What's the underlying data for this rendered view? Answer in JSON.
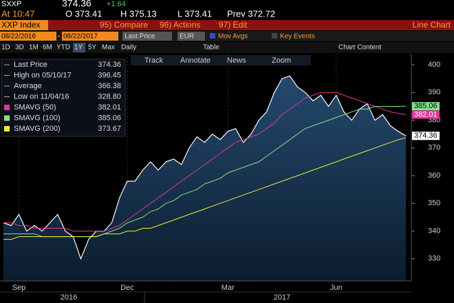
{
  "header": {
    "ticker": "SXXP",
    "price": "374.36",
    "change": "+1.64",
    "time": "At 10:47",
    "open": "O 373.41",
    "high": "H 375.13",
    "low": "L 373.41",
    "prev": "Prev 372.72",
    "index": "XXP Index",
    "compare": "95) Compare",
    "actions": "96) Actions",
    "edit": "97) Edit",
    "chart_kind": "Line Chart",
    "start_date": "08/22/2016",
    "dash": "-",
    "end_date": "08/22/2017",
    "field": "Last Price",
    "currency": "EUR",
    "mov_avgs": "Mov Avgs",
    "key_events": "Key Events",
    "periods": [
      "1D",
      "3D",
      "1M",
      "6M",
      "YTD",
      "1Y",
      "5Y",
      "Max"
    ],
    "frequency": "Daily",
    "table": "Table",
    "chart_content": "Chart Content",
    "tools": [
      "Track",
      "Annotate",
      "News",
      "Zoom"
    ]
  },
  "chart_data": {
    "type": "line",
    "categories": [
      null,
      null,
      "Sep",
      null,
      null,
      null,
      null,
      null,
      null,
      null,
      null,
      null,
      null,
      null,
      null,
      null,
      "Dec",
      null,
      null,
      null,
      null,
      null,
      null,
      null,
      null,
      null,
      null,
      null,
      null,
      "Mar",
      null,
      null,
      null,
      null,
      null,
      null,
      null,
      null,
      null,
      null,
      null,
      null,
      null,
      "Jun",
      null,
      null,
      null,
      null,
      null,
      null,
      null,
      null,
      null
    ],
    "year_labels": [
      "2016",
      "2017"
    ],
    "series": [
      {
        "name": "Last Price",
        "color": "#ffffff",
        "values": [
          343,
          342,
          346,
          340,
          342,
          340,
          343,
          346,
          340,
          338,
          330,
          337,
          340,
          340,
          343,
          352,
          358,
          358,
          362,
          365,
          362,
          365,
          366,
          364,
          370,
          374,
          372,
          375,
          373,
          376,
          377,
          372,
          375,
          380,
          383,
          390,
          395,
          396,
          392,
          390,
          387,
          389,
          385,
          389,
          383,
          380,
          384,
          386,
          380,
          382,
          378,
          376,
          374.36
        ]
      },
      {
        "name": "SMAVG (50)",
        "color": "#e4359d",
        "values": [
          343,
          343,
          342,
          342,
          341,
          341,
          341,
          341,
          341,
          340,
          340,
          340,
          340,
          340,
          341,
          342,
          344,
          346,
          348,
          350,
          352,
          354,
          356,
          358,
          360,
          362,
          364,
          366,
          368,
          370,
          372,
          373,
          374,
          375,
          377,
          379,
          382,
          384,
          386,
          388,
          389,
          390,
          390,
          390,
          389,
          388,
          387,
          386,
          385,
          384,
          383,
          382.5,
          382.01
        ]
      },
      {
        "name": "SMAVG (100)",
        "color": "#86e08a",
        "values": [
          339,
          339,
          339,
          339,
          339,
          338,
          338,
          338,
          338,
          338,
          338,
          338,
          338,
          339,
          340,
          341,
          343,
          344,
          345,
          347,
          348,
          350,
          351,
          353,
          354,
          355,
          357,
          358,
          359,
          361,
          362,
          363,
          364,
          365,
          367,
          369,
          371,
          373,
          375,
          377,
          378,
          379,
          380,
          381,
          382,
          383,
          384,
          384,
          385,
          385,
          385,
          385,
          385.06
        ]
      },
      {
        "name": "SMAVG (200)",
        "color": "#eeee3a",
        "values": [
          337,
          337,
          338,
          338,
          338,
          338,
          338,
          338,
          338,
          338,
          338,
          338,
          338,
          339,
          339,
          339,
          340,
          340,
          341,
          341,
          342,
          343,
          344,
          345,
          346,
          347,
          348,
          349,
          350,
          351,
          352,
          353,
          354,
          355,
          356,
          357,
          358,
          359,
          360,
          361,
          362,
          363,
          364,
          365,
          366,
          367,
          368,
          369,
          370,
          371,
          372,
          373,
          373.67
        ]
      }
    ],
    "stats": [
      {
        "name": "High on 05/10/17",
        "value": 396.45
      },
      {
        "name": "Average",
        "value": 366.38
      },
      {
        "name": "Low on 11/04/16",
        "value": {
          "value": 328.8,
          "label": "328.80"
        }
      }
    ],
    "ylim": [
      322,
      404
    ],
    "yticks": [
      330,
      340,
      350,
      360,
      370,
      380,
      390,
      400
    ]
  }
}
